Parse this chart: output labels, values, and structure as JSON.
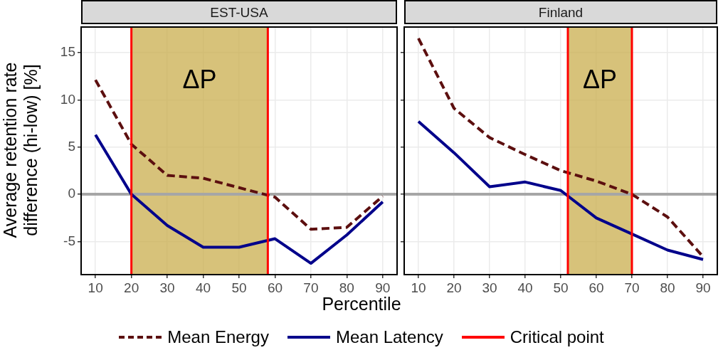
{
  "chart_data": [
    {
      "type": "line",
      "title": "EST-USA",
      "xlabel": "Percentile",
      "ylabel": "Average retention rate difference (hi-low) [%]",
      "legend": "bottom",
      "grid": true,
      "xlim": [
        6,
        94
      ],
      "xticks": [
        10,
        20,
        30,
        40,
        50,
        60,
        70,
        80,
        90
      ],
      "ylim": [
        -8.5,
        17.7
      ],
      "yticks": [
        -5,
        0,
        5,
        10,
        15
      ],
      "series": [
        {
          "name": "Mean Energy",
          "color": "#5c0f0f",
          "line_style": "dashed",
          "x": [
            10,
            20,
            30,
            40,
            50,
            60,
            70,
            80,
            90
          ],
          "values": [
            12.1,
            5.3,
            2.0,
            1.7,
            0.7,
            -0.3,
            -3.7,
            -3.5,
            -0.2
          ]
        },
        {
          "name": "Mean Latency",
          "color": "#00008b",
          "line_style": "solid",
          "x": [
            10,
            20,
            30,
            40,
            50,
            60,
            70,
            80,
            90
          ],
          "values": [
            6.3,
            0,
            -3.3,
            -5.6,
            -5.6,
            -4.7,
            -7.3,
            -4.3,
            -0.8
          ]
        }
      ],
      "ref_lines": [
        {
          "axis": "y",
          "value": 0,
          "color": "#a6a6a6"
        },
        {
          "axis": "x",
          "value": 20,
          "label": "Critical point",
          "color": "#ff0000"
        },
        {
          "axis": "x",
          "value": 58,
          "color": "#ff0000"
        }
      ],
      "bands": [
        {
          "axis": "x",
          "from": 20,
          "to": 58,
          "label": "ΔP",
          "color": "#c9ad4e"
        }
      ]
    },
    {
      "type": "line",
      "title": "Finland",
      "tick_labels": "x",
      "grid": true,
      "xlim": [
        6,
        94
      ],
      "xticks": [
        10,
        20,
        30,
        40,
        50,
        60,
        70,
        80,
        90
      ],
      "ylim": [
        -8.5,
        17.7
      ],
      "yticks": [
        -5,
        0,
        5,
        10,
        15
      ],
      "series": [
        {
          "name": "Mean Energy",
          "color": "#5c0f0f",
          "line_style": "dashed",
          "x": [
            10,
            20,
            30,
            40,
            50,
            60,
            70,
            80,
            90
          ],
          "values": [
            16.5,
            9.1,
            6.0,
            4.2,
            2.5,
            1.4,
            0,
            -2.4,
            -6.6
          ]
        },
        {
          "name": "Mean Latency",
          "color": "#00008b",
          "line_style": "solid",
          "x": [
            10,
            20,
            30,
            40,
            50,
            60,
            70,
            80,
            90
          ],
          "values": [
            7.7,
            4.4,
            0.8,
            1.3,
            0.4,
            -2.5,
            -4.2,
            -5.9,
            -6.9
          ]
        }
      ],
      "ref_lines": [
        {
          "axis": "y",
          "value": 0,
          "color": "#a6a6a6"
        },
        {
          "axis": "x",
          "value": 52,
          "color": "#ff0000"
        },
        {
          "axis": "x",
          "value": 70,
          "color": "#ff0000"
        }
      ],
      "bands": [
        {
          "axis": "x",
          "from": 52,
          "to": 70,
          "label": "ΔP",
          "color": "#c9ad4e"
        }
      ]
    }
  ]
}
